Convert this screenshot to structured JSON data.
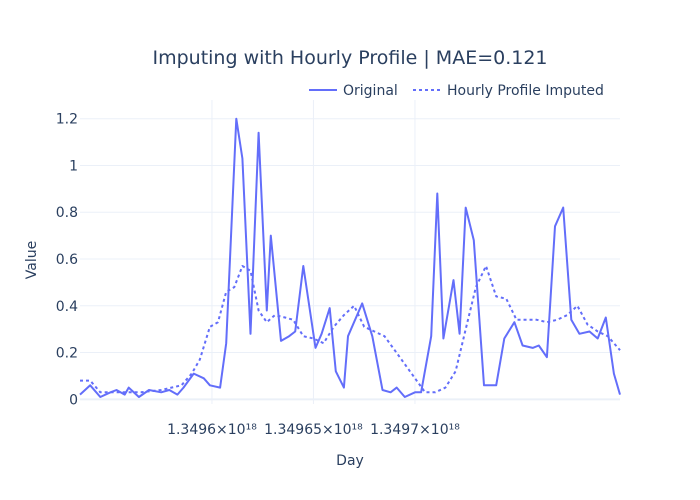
{
  "chart_data": {
    "type": "line",
    "title": "Imputing with Hourly Profile | MAE=0.121",
    "xlabel": "Day",
    "ylabel": "Value",
    "xlim": [
      1.349535e+18,
      1.349801e+18
    ],
    "ylim": [
      -0.02,
      1.28
    ],
    "x_ticks": [
      1.3496e+18,
      1.34965e+18,
      1.3497e+18
    ],
    "x_tick_labels": [
      "1.3496×10¹⁸",
      "1.34965×10¹⁸",
      "1.3497×10¹⁸"
    ],
    "y_ticks": [
      0,
      0.2,
      0.4,
      0.6,
      0.8,
      1,
      1.2
    ],
    "y_tick_labels": [
      "0",
      "0.2",
      "0.4",
      "0.6",
      "0.8",
      "1",
      "1.2"
    ],
    "grid": true,
    "legend_position": "top-right",
    "series": [
      {
        "name": "Original",
        "color": "#636efa",
        "dash": "solid",
        "x": [
          1.349535e+18,
          1.34954e+18,
          1.349545e+18,
          1.34955e+18,
          1.349553e+18,
          1.349557e+18,
          1.349559e+18,
          1.349564e+18,
          1.349569e+18,
          1.349575e+18,
          1.349579e+18,
          1.349583e+18,
          1.349586e+18,
          1.349591e+18,
          1.349596e+18,
          1.349599e+18,
          1.349604e+18,
          1.349607e+18,
          1.349612e+18,
          1.349615e+18,
          1.349619e+18,
          1.349623e+18,
          1.349627e+18,
          1.349629e+18,
          1.349634e+18,
          1.349638e+18,
          1.349641e+18,
          1.349645e+18,
          1.349651e+18,
          1.349654e+18,
          1.349658e+18,
          1.349661e+18,
          1.349665e+18,
          1.349667e+18,
          1.349674e+18,
          1.349679e+18,
          1.349684e+18,
          1.349688e+18,
          1.349691e+18,
          1.349695e+18,
          1.3497e+18,
          1.349703e+18,
          1.349708e+18,
          1.349711e+18,
          1.349714e+18,
          1.349719e+18,
          1.349722e+18,
          1.349725e+18,
          1.349729e+18,
          1.349734e+18,
          1.34974e+18,
          1.349744e+18,
          1.349749e+18,
          1.349753e+18,
          1.349758e+18,
          1.349761e+18,
          1.349765e+18,
          1.349769e+18,
          1.349773e+18,
          1.349777e+18,
          1.349781e+18,
          1.349786e+18,
          1.34979e+18,
          1.349794e+18,
          1.349798e+18,
          1.349801e+18
        ],
        "values": [
          0.02,
          0.06,
          0.01,
          0.03,
          0.04,
          0.02,
          0.05,
          0.01,
          0.04,
          0.03,
          0.04,
          0.02,
          0.05,
          0.11,
          0.09,
          0.06,
          0.05,
          0.24,
          1.2,
          1.03,
          0.28,
          1.14,
          0.38,
          0.7,
          0.25,
          0.27,
          0.29,
          0.57,
          0.22,
          0.28,
          0.39,
          0.12,
          0.05,
          0.27,
          0.41,
          0.27,
          0.04,
          0.03,
          0.05,
          0.01,
          0.03,
          0.03,
          0.27,
          0.88,
          0.26,
          0.51,
          0.28,
          0.82,
          0.68,
          0.06,
          0.06,
          0.26,
          0.33,
          0.23,
          0.22,
          0.23,
          0.18,
          0.74,
          0.82,
          0.34,
          0.28,
          0.29,
          0.26,
          0.35,
          0.11,
          0.02
        ],
        "note_sparse": []
      },
      {
        "name": "Hourly Profile Imputed",
        "color": "#636efa",
        "dash": "dot",
        "x": [
          1.349535e+18,
          1.34954e+18,
          1.349545e+18,
          1.349555e+18,
          1.349565e+18,
          1.349575e+18,
          1.349585e+18,
          1.34959e+18,
          1.349594e+18,
          1.349599e+18,
          1.349603e+18,
          1.349607e+18,
          1.349611e+18,
          1.349615e+18,
          1.349619e+18,
          1.349623e+18,
          1.349627e+18,
          1.349631e+18,
          1.349636e+18,
          1.34964e+18,
          1.349645e+18,
          1.34965e+18,
          1.349655e+18,
          1.34966e+18,
          1.349665e+18,
          1.34967e+18,
          1.349675e+18,
          1.34968e+18,
          1.349685e+18,
          1.34969e+18,
          1.3497e+18,
          1.349705e+18,
          1.34971e+18,
          1.349715e+18,
          1.34972e+18,
          1.349725e+18,
          1.34973e+18,
          1.349735e+18,
          1.34974e+18,
          1.349745e+18,
          1.34975e+18,
          1.349755e+18,
          1.34976e+18,
          1.349765e+18,
          1.34977e+18,
          1.349775e+18,
          1.34978e+18,
          1.349785e+18,
          1.34979e+18,
          1.349795e+18,
          1.349801e+18
        ],
        "values": [
          0.08,
          0.08,
          0.03,
          0.03,
          0.03,
          0.04,
          0.06,
          0.11,
          0.17,
          0.31,
          0.33,
          0.46,
          0.48,
          0.57,
          0.55,
          0.38,
          0.33,
          0.36,
          0.35,
          0.34,
          0.27,
          0.26,
          0.24,
          0.31,
          0.36,
          0.4,
          0.31,
          0.29,
          0.27,
          0.21,
          0.09,
          0.03,
          0.03,
          0.05,
          0.12,
          0.3,
          0.48,
          0.57,
          0.44,
          0.43,
          0.34,
          0.34,
          0.34,
          0.33,
          0.34,
          0.36,
          0.4,
          0.32,
          0.29,
          0.27,
          0.21
        ]
      }
    ]
  }
}
